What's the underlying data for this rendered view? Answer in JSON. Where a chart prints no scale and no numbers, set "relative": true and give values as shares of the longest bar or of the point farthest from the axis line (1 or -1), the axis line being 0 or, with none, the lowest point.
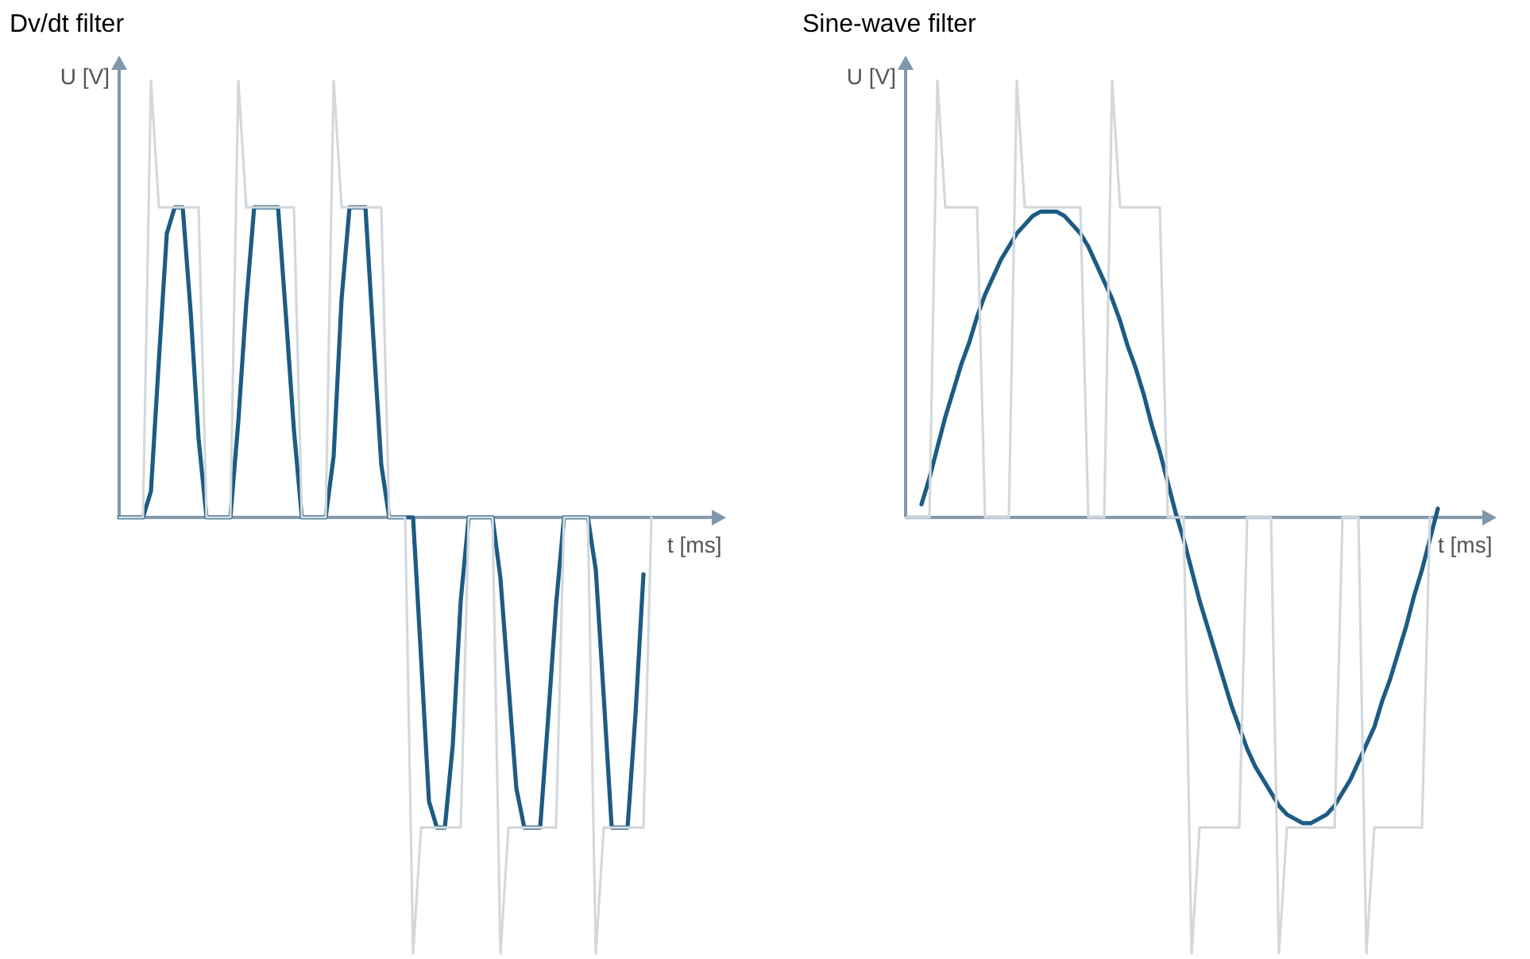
{
  "chart_data": [
    {
      "type": "line",
      "title": "Dv/dt filter",
      "xlabel": "t [ms]",
      "ylabel": "U [V]",
      "relative": true,
      "marker": "none",
      "ref_lines": [
        {
          "axis": "y",
          "value": 0,
          "color": "#8197ab"
        }
      ],
      "categories": [
        null,
        null,
        null,
        null,
        null,
        null,
        null,
        null,
        null,
        null,
        null,
        null,
        null,
        null,
        null,
        null,
        null,
        null,
        null,
        null,
        null,
        null,
        null,
        null,
        null,
        null,
        null,
        null,
        null,
        null,
        null,
        null,
        null,
        null,
        null,
        null,
        null,
        null,
        null,
        null,
        null,
        null,
        null,
        null,
        null,
        null,
        null,
        null,
        null,
        null,
        null,
        null,
        null,
        null,
        null,
        null,
        null,
        null,
        null,
        null,
        null,
        null,
        null,
        null,
        null,
        null,
        null,
        null,
        null,
        null,
        null,
        null,
        null,
        null,
        null,
        null
      ],
      "series": [
        {
          "color": "#d3d8dc",
          "values": [
            0,
            0,
            0,
            0,
            1,
            0.71,
            0.71,
            0.71,
            0.71,
            0.71,
            0.71,
            0,
            0,
            0,
            0,
            1,
            0.71,
            0.71,
            0.71,
            0.71,
            0.71,
            0.71,
            0.71,
            0,
            0,
            0,
            0,
            1,
            0.71,
            0.71,
            0.71,
            0.71,
            0.71,
            0.71,
            0,
            0,
            0,
            -1,
            -0.71,
            -0.71,
            -0.71,
            -0.71,
            -0.71,
            -0.71,
            0,
            0,
            0,
            0,
            -1,
            -0.71,
            -0.71,
            -0.71,
            -0.71,
            -0.71,
            -0.71,
            -0.71,
            0,
            0,
            0,
            0,
            -1,
            -0.71,
            -0.71,
            -0.71,
            -0.71,
            -0.71,
            -0.71,
            0,
            null,
            null,
            null,
            null,
            null,
            null,
            null,
            null
          ]
        },
        {
          "color": "#1d5b84",
          "values": [
            0,
            0,
            0,
            0,
            0.06,
            0.36,
            0.65,
            0.71,
            0.71,
            0.47,
            0.18,
            0,
            0,
            0,
            0,
            0.22,
            0.49,
            0.71,
            0.71,
            0.71,
            0.71,
            0.46,
            0.2,
            0,
            0,
            0,
            0,
            0.14,
            0.5,
            0.71,
            0.71,
            0.71,
            0.41,
            0.12,
            0,
            0,
            0,
            0,
            -0.32,
            -0.65,
            -0.71,
            -0.71,
            -0.52,
            -0.19,
            0,
            0,
            0,
            0,
            -0.14,
            -0.38,
            -0.62,
            -0.71,
            -0.71,
            -0.71,
            -0.46,
            -0.2,
            0,
            0,
            0,
            0,
            -0.12,
            -0.41,
            -0.71,
            -0.71,
            -0.71,
            -0.45,
            -0.13,
            null,
            null,
            null,
            null,
            null,
            null,
            null,
            null,
            null
          ]
        }
      ]
    },
    {
      "type": "line",
      "title": "Sine-wave filter",
      "xlabel": "t [ms]",
      "ylabel": "U [V]",
      "relative": true,
      "marker": "none",
      "ref_lines": [
        {
          "axis": "y",
          "value": 0,
          "color": "#8197ab"
        }
      ],
      "categories": [
        null,
        null,
        null,
        null,
        null,
        null,
        null,
        null,
        null,
        null,
        null,
        null,
        null,
        null,
        null,
        null,
        null,
        null,
        null,
        null,
        null,
        null,
        null,
        null,
        null,
        null,
        null,
        null,
        null,
        null,
        null,
        null,
        null,
        null,
        null,
        null,
        null,
        null,
        null,
        null,
        null,
        null,
        null,
        null,
        null,
        null,
        null,
        null,
        null,
        null,
        null,
        null,
        null,
        null,
        null,
        null,
        null,
        null,
        null,
        null,
        null,
        null,
        null,
        null,
        null,
        null,
        null,
        null,
        null,
        null,
        null,
        null,
        null,
        null
      ],
      "series": [
        {
          "color": "#d3d8dc",
          "values": [
            0,
            0,
            0,
            0,
            1,
            0.71,
            0.71,
            0.71,
            0.71,
            0.71,
            0,
            0,
            0,
            0,
            1,
            0.71,
            0.71,
            0.71,
            0.71,
            0.71,
            0.71,
            0.71,
            0.71,
            0,
            0,
            0,
            1,
            0.71,
            0.71,
            0.71,
            0.71,
            0.71,
            0.71,
            0,
            0,
            0,
            -1,
            -0.71,
            -0.71,
            -0.71,
            -0.71,
            -0.71,
            -0.71,
            0,
            0,
            0,
            0,
            -1,
            -0.71,
            -0.71,
            -0.71,
            -0.71,
            -0.71,
            -0.71,
            -0.71,
            0,
            0,
            0,
            -1,
            -0.71,
            -0.71,
            -0.71,
            -0.71,
            -0.71,
            -0.71,
            -0.71,
            0,
            null,
            null,
            null,
            null,
            null,
            null,
            null
          ]
        },
        {
          "color": "#1d5b84",
          "values": [
            null,
            null,
            0.03,
            0.09,
            0.16,
            0.23,
            0.29,
            0.35,
            0.4,
            0.46,
            0.51,
            0.55,
            0.59,
            0.62,
            0.65,
            0.67,
            0.69,
            0.7,
            0.7,
            0.7,
            0.69,
            0.67,
            0.65,
            0.62,
            0.58,
            0.54,
            0.5,
            0.45,
            0.39,
            0.34,
            0.28,
            0.21,
            0.15,
            0.08,
            0.01,
            -0.05,
            -0.12,
            -0.19,
            -0.25,
            -0.31,
            -0.37,
            -0.43,
            -0.48,
            -0.53,
            -0.57,
            -0.6,
            -0.63,
            -0.66,
            -0.68,
            -0.69,
            -0.7,
            -0.7,
            -0.69,
            -0.68,
            -0.66,
            -0.63,
            -0.6,
            -0.56,
            -0.52,
            -0.48,
            -0.42,
            -0.37,
            -0.31,
            -0.25,
            -0.18,
            -0.12,
            -0.05,
            0.02,
            null,
            null,
            null,
            null,
            null,
            null
          ]
        }
      ]
    }
  ]
}
